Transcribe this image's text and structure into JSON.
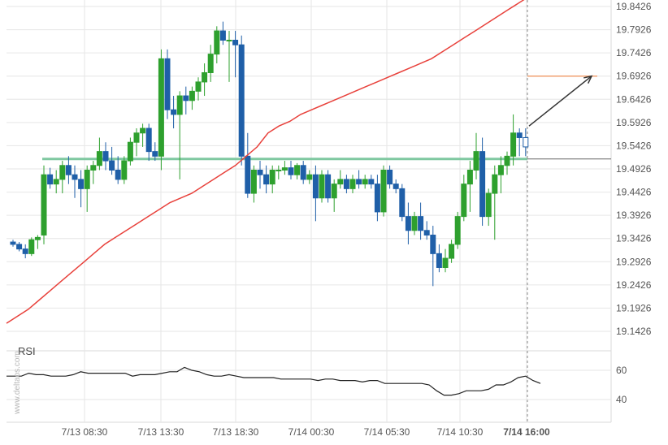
{
  "chart_data": {
    "type": "candlestick",
    "price_axis": {
      "ticks": [
        "19.8426",
        "19.7926",
        "19.7426",
        "19.6926",
        "19.6426",
        "19.5926",
        "19.5426",
        "19.4926",
        "19.4426",
        "19.3926",
        "19.3426",
        "19.2926",
        "19.2426",
        "19.1926",
        "19.1426"
      ],
      "range": [
        19.1426,
        19.8426
      ]
    },
    "time_axis": {
      "labels": [
        "7/13 08:30",
        "7/13 13:30",
        "7/13 18:30",
        "7/14 00:30",
        "7/14 05:30",
        "7/14 10:30",
        "7/14 16:00"
      ],
      "highlight": "7/14 16:00"
    },
    "levels": {
      "support_resistance": 19.514,
      "target": 19.6926,
      "current_price_line": 19.514
    },
    "arrow": {
      "from_price": 19.585,
      "to_price": 19.6926
    },
    "colors": {
      "bull": "#2ea02e",
      "bear": "#1f5fa8",
      "ma": "#e8413b",
      "level": "#7fc8a0",
      "target": "#f0a070",
      "rsi": "#222222"
    },
    "candles": [
      [
        19.335,
        19.34,
        19.325,
        19.33
      ],
      [
        19.33,
        19.335,
        19.315,
        19.32
      ],
      [
        19.32,
        19.33,
        19.3,
        19.31
      ],
      [
        19.31,
        19.345,
        19.305,
        19.34
      ],
      [
        19.34,
        19.35,
        19.32,
        19.345
      ],
      [
        19.35,
        19.5,
        19.33,
        19.48
      ],
      [
        19.48,
        19.495,
        19.45,
        19.46
      ],
      [
        19.46,
        19.49,
        19.44,
        19.47
      ],
      [
        19.47,
        19.51,
        19.44,
        19.5
      ],
      [
        19.5,
        19.52,
        19.46,
        19.48
      ],
      [
        19.48,
        19.5,
        19.43,
        19.47
      ],
      [
        19.47,
        19.49,
        19.41,
        19.45
      ],
      [
        19.45,
        19.5,
        19.4,
        19.49
      ],
      [
        19.49,
        19.51,
        19.46,
        19.5
      ],
      [
        19.5,
        19.56,
        19.49,
        19.53
      ],
      [
        19.53,
        19.55,
        19.49,
        19.51
      ],
      [
        19.51,
        19.54,
        19.48,
        19.49
      ],
      [
        19.49,
        19.52,
        19.46,
        19.47
      ],
      [
        19.47,
        19.52,
        19.46,
        19.51
      ],
      [
        19.51,
        19.56,
        19.5,
        19.55
      ],
      [
        19.55,
        19.58,
        19.52,
        19.57
      ],
      [
        19.57,
        19.59,
        19.54,
        19.58
      ],
      [
        19.58,
        19.59,
        19.51,
        19.53
      ],
      [
        19.53,
        19.55,
        19.51,
        19.52
      ],
      [
        19.52,
        19.75,
        19.49,
        19.73
      ],
      [
        19.73,
        19.75,
        19.6,
        19.62
      ],
      [
        19.62,
        19.65,
        19.58,
        19.61
      ],
      [
        19.61,
        19.66,
        19.47,
        19.65
      ],
      [
        19.65,
        19.67,
        19.61,
        19.64
      ],
      [
        19.64,
        19.67,
        19.62,
        19.66
      ],
      [
        19.66,
        19.69,
        19.64,
        19.68
      ],
      [
        19.68,
        19.72,
        19.65,
        19.7
      ],
      [
        19.7,
        19.76,
        19.68,
        19.74
      ],
      [
        19.74,
        19.8,
        19.72,
        19.79
      ],
      [
        19.79,
        19.81,
        19.76,
        19.77
      ],
      [
        19.77,
        19.79,
        19.68,
        19.77
      ],
      [
        19.77,
        19.79,
        19.69,
        19.76
      ],
      [
        19.76,
        19.78,
        19.5,
        19.52
      ],
      [
        19.52,
        19.57,
        19.43,
        19.44
      ],
      [
        19.44,
        19.5,
        19.42,
        19.49
      ],
      [
        19.49,
        19.51,
        19.45,
        19.48
      ],
      [
        19.48,
        19.5,
        19.44,
        19.46
      ],
      [
        19.46,
        19.5,
        19.44,
        19.49
      ],
      [
        19.49,
        19.5,
        19.47,
        19.49
      ],
      [
        19.49,
        19.51,
        19.48,
        19.495
      ],
      [
        19.495,
        19.51,
        19.47,
        19.48
      ],
      [
        19.48,
        19.505,
        19.47,
        19.5
      ],
      [
        19.5,
        19.51,
        19.46,
        19.47
      ],
      [
        19.47,
        19.49,
        19.46,
        19.48
      ],
      [
        19.48,
        19.5,
        19.38,
        19.43
      ],
      [
        19.43,
        19.49,
        19.42,
        19.48
      ],
      [
        19.48,
        19.49,
        19.42,
        19.43
      ],
      [
        19.43,
        19.47,
        19.4,
        19.46
      ],
      [
        19.46,
        19.49,
        19.45,
        19.47
      ],
      [
        19.47,
        19.48,
        19.44,
        19.45
      ],
      [
        19.45,
        19.48,
        19.44,
        19.47
      ],
      [
        19.47,
        19.49,
        19.45,
        19.46
      ],
      [
        19.46,
        19.48,
        19.45,
        19.47
      ],
      [
        19.47,
        19.48,
        19.45,
        19.46
      ],
      [
        19.46,
        19.48,
        19.38,
        19.4
      ],
      [
        19.4,
        19.5,
        19.39,
        19.49
      ],
      [
        19.49,
        19.5,
        19.45,
        19.46
      ],
      [
        19.46,
        19.47,
        19.44,
        19.45
      ],
      [
        19.45,
        19.46,
        19.38,
        19.39
      ],
      [
        19.39,
        19.42,
        19.33,
        19.36
      ],
      [
        19.36,
        19.4,
        19.35,
        19.39
      ],
      [
        19.39,
        19.42,
        19.34,
        19.36
      ],
      [
        19.36,
        19.38,
        19.34,
        19.35
      ],
      [
        19.35,
        19.37,
        19.24,
        19.31
      ],
      [
        19.31,
        19.33,
        19.27,
        19.28
      ],
      [
        19.28,
        19.32,
        19.27,
        19.3
      ],
      [
        19.3,
        19.34,
        19.29,
        19.33
      ],
      [
        19.33,
        19.4,
        19.32,
        19.39
      ],
      [
        19.39,
        19.48,
        19.38,
        19.46
      ],
      [
        19.46,
        19.51,
        19.4,
        19.49
      ],
      [
        19.49,
        19.57,
        19.47,
        19.53
      ],
      [
        19.53,
        19.56,
        19.37,
        19.39
      ],
      [
        19.39,
        19.45,
        19.37,
        19.44
      ],
      [
        19.44,
        19.5,
        19.34,
        19.48
      ],
      [
        19.48,
        19.52,
        19.44,
        19.5
      ],
      [
        19.5,
        19.53,
        19.48,
        19.52
      ],
      [
        19.52,
        19.61,
        19.5,
        19.57
      ],
      [
        19.57,
        19.58,
        19.52,
        19.56
      ],
      [
        19.56,
        19.58,
        19.52,
        19.54
      ]
    ],
    "ma_values": [
      19.16,
      19.175,
      19.19,
      19.21,
      19.23,
      19.25,
      19.27,
      19.29,
      19.31,
      19.33,
      19.345,
      19.36,
      19.375,
      19.39,
      19.405,
      19.42,
      19.43,
      19.44,
      19.455,
      19.47,
      19.485,
      19.5,
      19.52,
      19.54,
      19.57,
      19.585,
      19.595,
      19.61,
      19.62,
      19.63,
      19.64,
      19.65,
      19.66,
      19.67,
      19.68,
      19.69,
      19.7,
      19.71,
      19.72,
      19.73,
      19.745,
      19.76,
      19.775,
      19.79,
      19.805,
      19.82,
      19.835,
      19.85,
      19.865,
      19.88
    ],
    "rsi": {
      "title": "RSI",
      "ticks": [
        "60",
        "40"
      ],
      "range": [
        30,
        70
      ],
      "values": [
        56,
        56,
        56,
        58,
        57,
        57,
        56,
        56,
        56,
        57,
        59,
        58,
        58,
        58,
        58,
        58,
        58,
        56,
        57,
        57,
        57,
        58,
        59,
        59,
        62,
        60,
        59,
        57,
        56,
        56,
        57,
        56,
        55,
        55,
        55,
        55,
        55,
        54,
        54,
        54,
        54,
        54,
        53,
        54,
        54,
        53,
        53,
        53,
        52,
        53,
        53,
        51,
        51,
        51,
        51,
        51,
        51,
        50,
        46,
        43,
        43,
        44,
        46,
        46,
        46,
        47,
        50,
        50,
        52,
        55,
        56,
        53,
        51
      ]
    }
  }
}
